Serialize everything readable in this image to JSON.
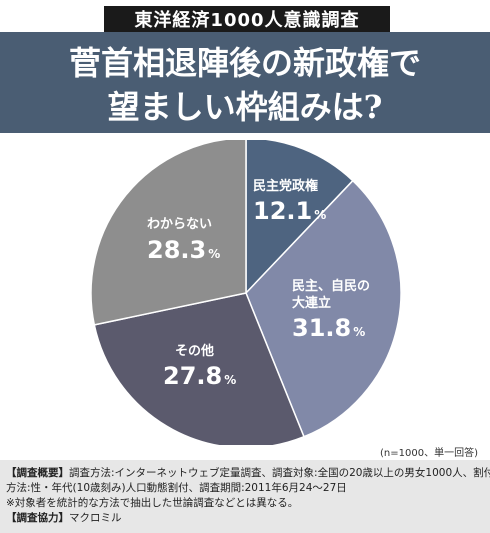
{
  "header": {
    "badge": "東洋経済1000人意識調査",
    "title_line1": "菅首相退陣後の新政権で",
    "title_line2": "望ましい枠組みは?"
  },
  "chart_data": {
    "type": "pie",
    "slices": [
      {
        "label": "民主党政権",
        "value": 12.1,
        "color": "#4e6480"
      },
      {
        "label": "民主、自民の大連立",
        "value": 31.8,
        "color": "#8189a8"
      },
      {
        "label": "その他",
        "value": 27.8,
        "color": "#5b5a6d"
      },
      {
        "label": "わからない",
        "value": 28.3,
        "color": "#8e8e8e"
      }
    ]
  },
  "labels": {
    "s0_line1": "民主党政権",
    "s0_value": "12.1",
    "s1_line1": "民主、自民の",
    "s1_line2": "大連立",
    "s1_value": "31.8",
    "s2_line1": "その他",
    "s2_value": "27.8",
    "s3_line1": "わからない",
    "s3_value": "28.3",
    "pct": "%"
  },
  "note": "(n=1000、単一回答)",
  "footer": {
    "line1_head": "【調査概要】",
    "line1_body": "調査方法:インターネットウェブ定量調査、調査対象:全国の20歳以上の男女1000人、割付",
    "line2": "方法:性・年代(10歳刻み)人口動態割付、調査期間:2011年6月24〜27日",
    "line3": "※対象者を統計的な方法で抽出した世論調査などとは異なる。",
    "line4_head": "【調査協力】",
    "line4_body": "マクロミル"
  }
}
